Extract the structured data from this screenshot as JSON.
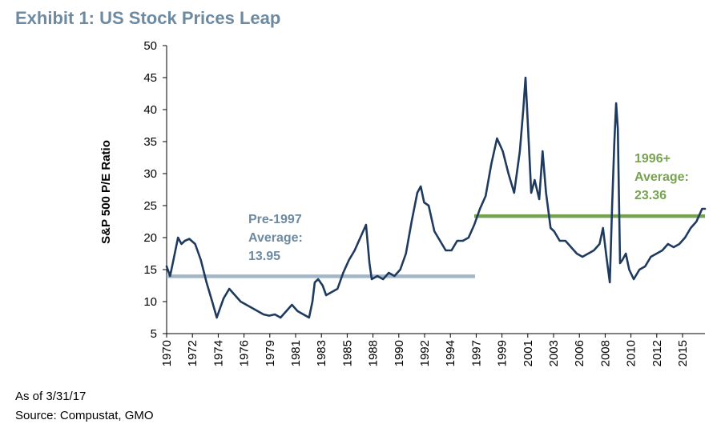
{
  "exhibit_title": "Exhibit 1: US Stock Prices Leap",
  "footnote_date": "As of 3/31/17",
  "footnote_source": "Source: Compustat, GMO",
  "chart_data": {
    "type": "line",
    "title": "Exhibit 1: US Stock Prices Leap",
    "xlabel": "",
    "ylabel": "S&P 500 P/E Ratio",
    "ylim": [
      5,
      50
    ],
    "xlim": [
      1970,
      2017.25
    ],
    "yticks": [
      "5",
      "10",
      "15",
      "20",
      "25",
      "30",
      "35",
      "40",
      "45",
      "50"
    ],
    "xticks": [
      "1970",
      "1972",
      "1974",
      "1976",
      "1979",
      "1981",
      "1983",
      "1985",
      "1988",
      "1990",
      "1992",
      "1994",
      "1997",
      "1999",
      "2001",
      "2003",
      "2006",
      "2008",
      "2010",
      "2012",
      "2015"
    ],
    "grid": false,
    "legend": "none",
    "colors": {
      "series": "#1f3a5f",
      "pre_avg": "#9fb7c9",
      "post_avg": "#77a351"
    },
    "series": [
      {
        "x": [
          1970.0,
          1970.3,
          1970.6,
          1971.0,
          1971.3,
          1971.6,
          1972.0,
          1972.5,
          1973.0,
          1973.5,
          1974.0,
          1974.4,
          1974.7,
          1975.0,
          1975.5,
          1976.0,
          1976.5,
          1977.0,
          1977.5,
          1978.0,
          1978.5,
          1979.0,
          1979.5,
          1980.0,
          1980.5,
          1981.0,
          1981.5,
          1982.0,
          1982.5,
          1982.8,
          1983.0,
          1983.3,
          1983.7,
          1984.0,
          1984.5,
          1985.0,
          1985.5,
          1986.0,
          1986.5,
          1987.0,
          1987.5,
          1987.8,
          1988.0,
          1988.5,
          1989.0,
          1989.5,
          1990.0,
          1990.5,
          1991.0,
          1991.5,
          1992.0,
          1992.3,
          1992.6,
          1993.0,
          1993.5,
          1994.0,
          1994.5,
          1995.0,
          1995.5,
          1996.0,
          1996.5,
          1997.0,
          1997.5,
          1998.0,
          1998.5,
          1999.0,
          1999.5,
          2000.0,
          2000.5,
          2001.0,
          2001.3,
          2001.5,
          2001.7,
          2002.0,
          2002.3,
          2002.7,
          2003.0,
          2003.3,
          2003.7,
          2004.0,
          2004.5,
          2005.0,
          2005.5,
          2006.0,
          2006.5,
          2007.0,
          2007.5,
          2008.0,
          2008.3,
          2008.6,
          2008.9,
          2009.1,
          2009.3,
          2009.45,
          2009.6,
          2009.8,
          2010.0,
          2010.3,
          2010.6,
          2011.0,
          2011.5,
          2012.0,
          2012.5,
          2013.0,
          2013.5,
          2014.0,
          2014.5,
          2015.0,
          2015.5,
          2016.0,
          2016.5,
          2017.0,
          2017.25
        ],
        "values": [
          15.5,
          14.0,
          16.5,
          20.0,
          19.0,
          19.5,
          19.8,
          19.0,
          16.5,
          13.0,
          10.0,
          7.5,
          9.0,
          10.5,
          12.0,
          11.0,
          10.0,
          9.5,
          9.0,
          8.5,
          8.0,
          7.8,
          8.0,
          7.5,
          8.5,
          9.5,
          8.5,
          8.0,
          7.5,
          10.0,
          13.0,
          13.5,
          12.5,
          11.0,
          11.5,
          12.0,
          14.5,
          16.5,
          18.0,
          20.0,
          22.0,
          16.0,
          13.5,
          14.0,
          13.5,
          14.5,
          14.0,
          15.0,
          17.5,
          22.5,
          27.0,
          28.0,
          25.5,
          25.0,
          21.0,
          19.5,
          18.0,
          18.0,
          19.5,
          19.5,
          20.0,
          22.0,
          24.5,
          26.5,
          31.5,
          35.5,
          33.5,
          30.0,
          27.0,
          33.5,
          40.0,
          45.0,
          38.0,
          27.0,
          29.0,
          26.0,
          33.5,
          27.0,
          21.5,
          21.0,
          19.5,
          19.5,
          18.5,
          17.5,
          17.0,
          17.5,
          18.0,
          19.0,
          21.5,
          17.0,
          13.0,
          25.0,
          35.0,
          41.0,
          37.0,
          16.0,
          16.5,
          17.5,
          15.0,
          13.5,
          15.0,
          15.5,
          17.0,
          17.5,
          18.0,
          19.0,
          18.5,
          19.0,
          20.0,
          21.5,
          22.5,
          24.5,
          24.5
        ]
      }
    ],
    "reference_lines": [
      {
        "x0": 1970,
        "x1": 1997.0,
        "value": 13.95
      },
      {
        "x0": 1997.0,
        "x1": 2017.25,
        "value": 23.36
      }
    ],
    "annotations": [
      {
        "lines": [
          "Pre-1997",
          "Average:",
          "13.95"
        ],
        "x": 1983.5,
        "y": 25.0
      },
      {
        "lines": [
          "1996+",
          "Average:",
          "23.36"
        ],
        "x": 2010.6,
        "y": 30.5
      }
    ]
  }
}
